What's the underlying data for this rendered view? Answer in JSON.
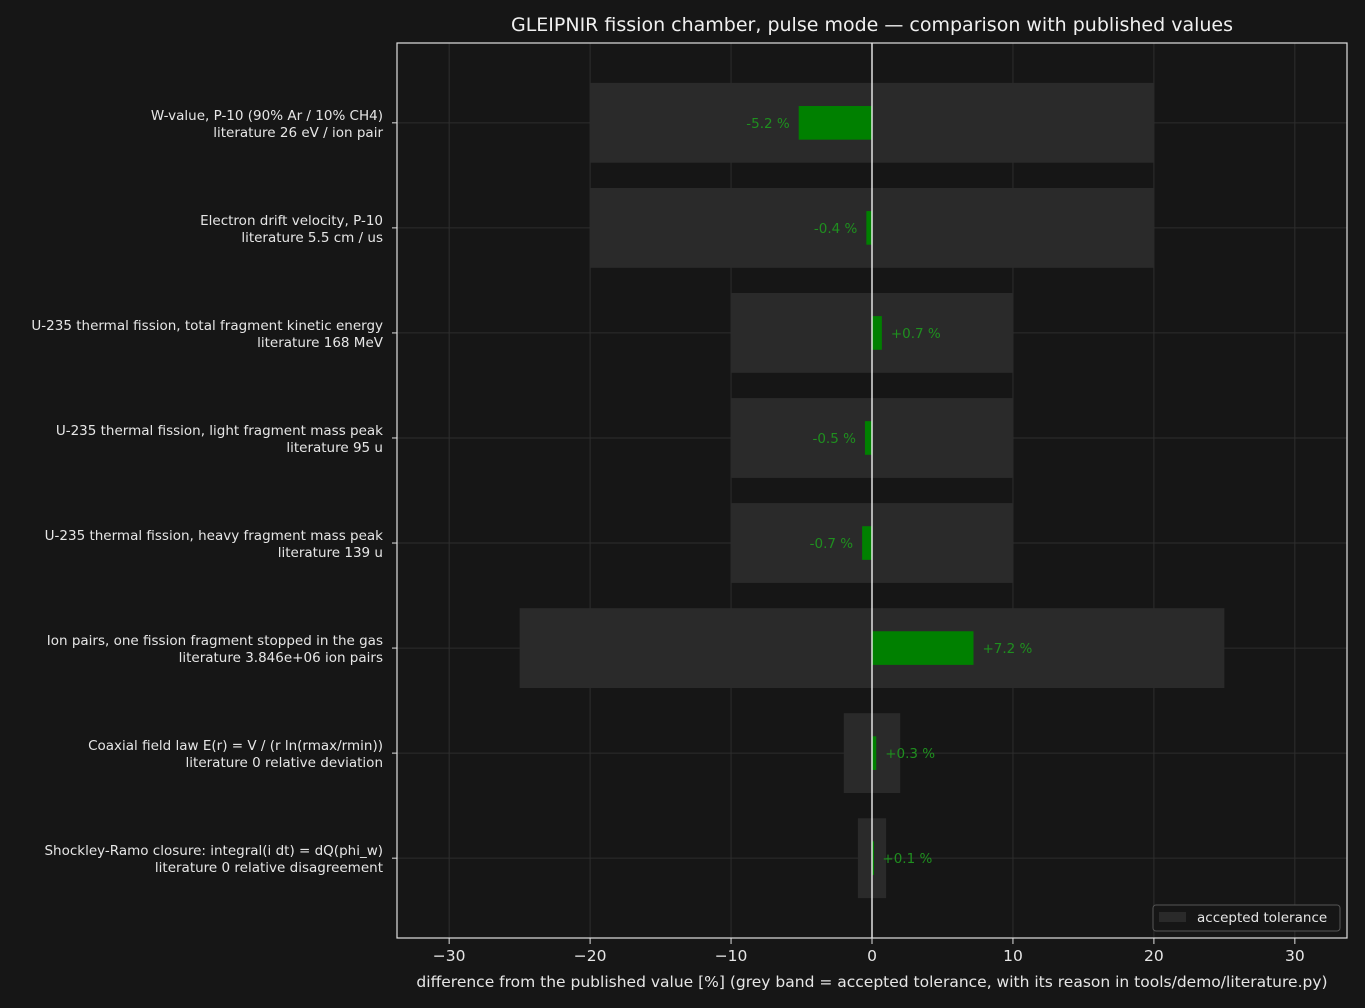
{
  "chart_data": {
    "type": "bar",
    "orientation": "horizontal",
    "title": "GLEIPNIR fission chamber, pulse mode — comparison with published values",
    "xlabel": "difference from the published value [%]   (grey band = accepted tolerance, with its reason in tools/demo/literature.py)",
    "xlim": [
      -33.7,
      33.7
    ],
    "xticks": [
      -30,
      -20,
      -10,
      0,
      10,
      20,
      30
    ],
    "xtick_labels": [
      "−30",
      "−20",
      "−10",
      "0",
      "10",
      "20",
      "30"
    ],
    "grid": true,
    "legend": {
      "entries": [
        "accepted tolerance"
      ],
      "position": "bottom-right"
    },
    "colors": {
      "background": "#161616",
      "plot_background": "#161616",
      "tolerance_band": "#2a2a2a",
      "bar": "#008000",
      "value_label": "#1f8f1f",
      "zero_line": "#ffffff",
      "grid": "#2e2e2e",
      "text": "#e6e6e6"
    },
    "categories": [
      {
        "name": "W-value, P-10 (90% Ar / 10% CH4)",
        "literature": "literature 26 eV / ion pair",
        "value": -5.2,
        "label": "-5.2 %",
        "tolerance": 20
      },
      {
        "name": "Electron drift velocity, P-10",
        "literature": "literature 5.5 cm / us",
        "value": -0.4,
        "label": "-0.4 %",
        "tolerance": 20
      },
      {
        "name": "U-235 thermal fission, total fragment kinetic energy",
        "literature": "literature 168 MeV",
        "value": 0.7,
        "label": "+0.7 %",
        "tolerance": 10
      },
      {
        "name": "U-235 thermal fission, light fragment mass peak",
        "literature": "literature 95 u",
        "value": -0.5,
        "label": "-0.5 %",
        "tolerance": 10
      },
      {
        "name": "U-235 thermal fission, heavy fragment mass peak",
        "literature": "literature 139 u",
        "value": -0.7,
        "label": "-0.7 %",
        "tolerance": 10
      },
      {
        "name": "Ion pairs, one fission fragment stopped in the gas",
        "literature": "literature 3.846e+06 ion pairs",
        "value": 7.2,
        "label": "+7.2 %",
        "tolerance": 25
      },
      {
        "name": "Coaxial field law E(r) = V / (r ln(rmax/rmin))",
        "literature": "literature 0 relative deviation",
        "value": 0.3,
        "label": "+0.3 %",
        "tolerance": 2
      },
      {
        "name": "Shockley-Ramo closure: integral(i dt) = dQ(phi_w)",
        "literature": "literature 0 relative disagreement",
        "value": 0.1,
        "label": "+0.1 %",
        "tolerance": 1
      }
    ]
  }
}
